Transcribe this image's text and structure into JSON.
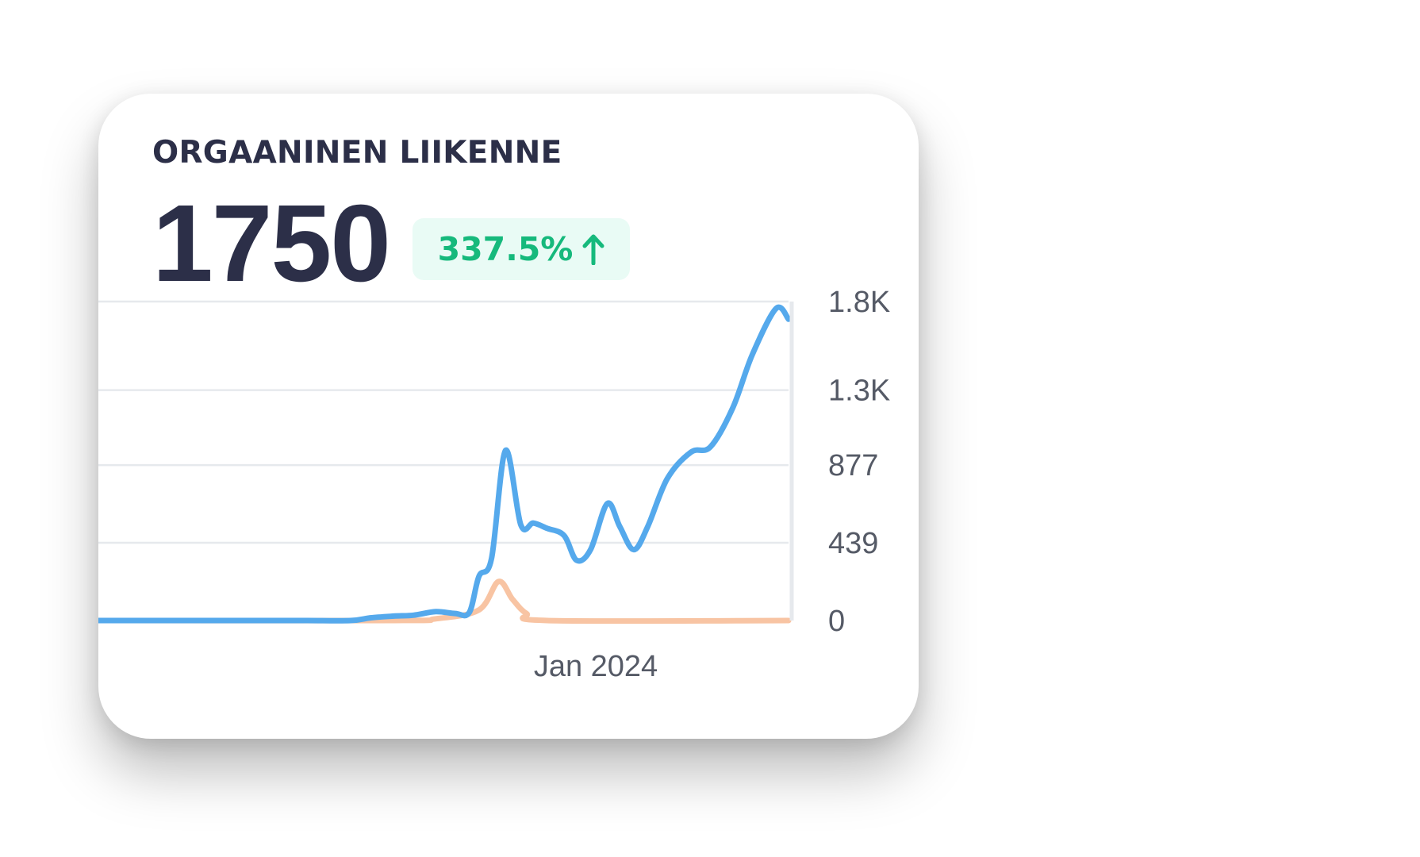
{
  "card": {
    "title": "ORGAANINEN LIIKENNE",
    "value": "1750",
    "change": "337.5%",
    "change_direction": "up",
    "change_icon": "arrow-up-icon"
  },
  "colors": {
    "title": "#2c2f48",
    "badge_text": "#16b97c",
    "badge_bg": "#e9fbf5",
    "series_primary": "#55a9ec",
    "series_secondary": "#f8c4a3",
    "gridline": "#e6e9ed"
  },
  "chart_data": {
    "type": "line",
    "grid": true,
    "legend": "none",
    "y_axis_position": "right",
    "yticks": [
      0,
      439,
      877,
      1300,
      1800
    ],
    "ytick_labels": [
      "0",
      "439",
      "877",
      "1.3K",
      "1.8K"
    ],
    "ylim": [
      0,
      1800
    ],
    "xticks": [
      {
        "x": "2024-01",
        "label": "Jan 2024"
      }
    ],
    "series": [
      {
        "color": "#55a9ec",
        "points": [
          [
            "2023-02",
            0
          ],
          [
            "2023-03",
            0
          ],
          [
            "2023-04",
            0
          ],
          [
            "2023-05",
            0
          ],
          [
            "2023-06",
            0
          ],
          [
            "2023-07",
            0
          ],
          [
            "2023-08",
            0
          ],
          [
            "2023-08-15",
            15
          ],
          [
            "2023-09",
            25
          ],
          [
            "2023-09-15",
            30
          ],
          [
            "2023-10",
            50
          ],
          [
            "2023-10-15",
            40
          ],
          [
            "2023-10-25",
            45
          ],
          [
            "2023-11-01",
            250
          ],
          [
            "2023-11-10",
            350
          ],
          [
            "2023-11-20",
            960
          ],
          [
            "2023-12-01",
            540
          ],
          [
            "2023-12-10",
            550
          ],
          [
            "2023-12-20",
            520
          ],
          [
            "2024-01-01",
            480
          ],
          [
            "2024-01-10",
            340
          ],
          [
            "2024-01-20",
            400
          ],
          [
            "2024-02-01",
            660
          ],
          [
            "2024-02-10",
            530
          ],
          [
            "2024-02-20",
            400
          ],
          [
            "2024-03-01",
            530
          ],
          [
            "2024-03-15",
            800
          ],
          [
            "2024-04-01",
            950
          ],
          [
            "2024-04-15",
            980
          ],
          [
            "2024-05-01",
            1200
          ],
          [
            "2024-05-15",
            1500
          ],
          [
            "2024-06-01",
            1760
          ],
          [
            "2024-06-10",
            1700
          ]
        ]
      },
      {
        "color": "#f8c4a3",
        "points": [
          [
            "2023-02",
            0
          ],
          [
            "2023-09",
            0
          ],
          [
            "2023-10",
            10
          ],
          [
            "2023-11-01",
            60
          ],
          [
            "2023-11-15",
            220
          ],
          [
            "2023-11-25",
            120
          ],
          [
            "2023-12-05",
            40
          ],
          [
            "2023-12-20",
            0
          ],
          [
            "2024-06-10",
            0
          ]
        ]
      }
    ]
  }
}
